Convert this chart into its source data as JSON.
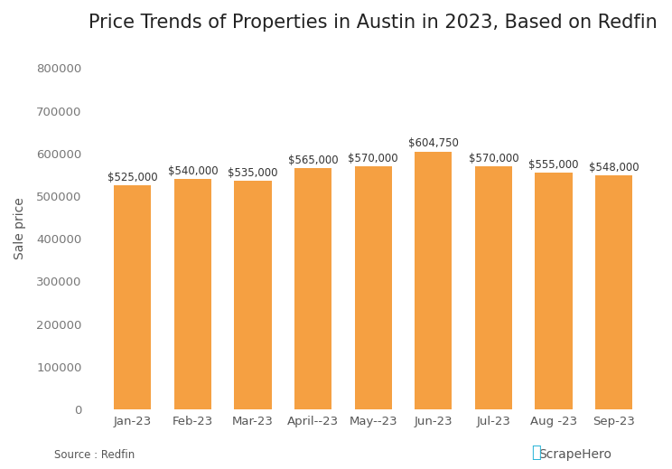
{
  "title": "Price Trends of Properties in Austin in 2023, Based on Redfin",
  "categories": [
    "Jan-23",
    "Feb-23",
    "Mar-23",
    "April--23",
    "May--23",
    "Jun-23",
    "Jul-23",
    "Aug -23",
    "Sep-23"
  ],
  "values": [
    525000,
    540000,
    535000,
    565000,
    570000,
    604750,
    570000,
    555000,
    548000
  ],
  "labels": [
    "$525,000",
    "$540,000",
    "$535,000",
    "$565,000",
    "$570,000",
    "$604,750",
    "$570,000",
    "$555,000",
    "$548,000"
  ],
  "bar_color": "#F5A042",
  "ylabel": "Sale price",
  "ylim": [
    0,
    850000
  ],
  "yticks": [
    0,
    100000,
    200000,
    300000,
    400000,
    500000,
    600000,
    700000,
    800000
  ],
  "ytick_labels": [
    "0",
    "100000",
    "200000",
    "300000",
    "400000",
    "500000",
    "600000",
    "700000",
    "800000"
  ],
  "background_color": "#ffffff",
  "source_text": "Source : Redfin",
  "title_fontsize": 15,
  "label_fontsize": 8.5,
  "tick_fontsize": 9.5,
  "ylabel_fontsize": 10,
  "bar_width": 0.62
}
